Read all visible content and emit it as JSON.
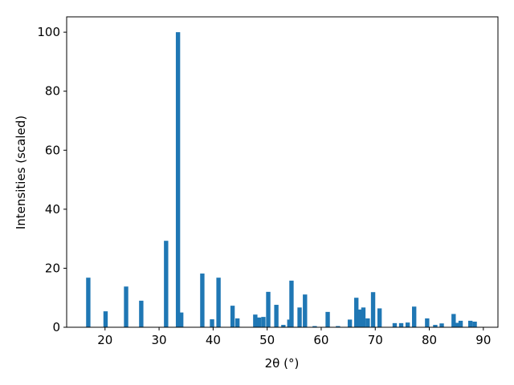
{
  "chart_data": {
    "type": "bar",
    "x_label": "2θ (°)",
    "y_label": "Intensities (scaled)",
    "color": "#1f77b4",
    "bar_width": 0.8,
    "x": [
      16.9,
      20.1,
      23.9,
      26.7,
      31.3,
      33.5,
      34.1,
      38.0,
      39.8,
      41.0,
      43.6,
      44.5,
      47.8,
      48.5,
      49.3,
      50.2,
      51.7,
      53.0,
      54.1,
      54.5,
      56.0,
      57.0,
      58.8,
      61.2,
      63.1,
      65.3,
      66.5,
      67.1,
      67.8,
      68.6,
      69.6,
      70.8,
      73.6,
      74.8,
      76.0,
      77.2,
      79.6,
      81.1,
      82.3,
      84.5,
      85.2,
      85.8,
      87.6,
      88.4
    ],
    "values": [
      16.8,
      5.4,
      13.8,
      9,
      29.3,
      100,
      5,
      18.2,
      2.7,
      16.8,
      7.3,
      3,
      4.3,
      3.3,
      3.5,
      12,
      7.6,
      0.8,
      2.6,
      15.8,
      6.7,
      11.1,
      0.4,
      5.2,
      0.4,
      2.6,
      10,
      6,
      6.7,
      3,
      11.9,
      6.4,
      1.4,
      1.4,
      1.6,
      7,
      3,
      0.8,
      1.3,
      4.5,
      1.5,
      2.2,
      2.2,
      1.9
    ],
    "xlim": [
      12.9,
      92.7
    ],
    "ylim": [
      0,
      105.2
    ],
    "xticks": [
      20,
      30,
      40,
      50,
      60,
      70,
      80,
      90
    ],
    "yticks": [
      0,
      20,
      40,
      60,
      80,
      100
    ]
  }
}
